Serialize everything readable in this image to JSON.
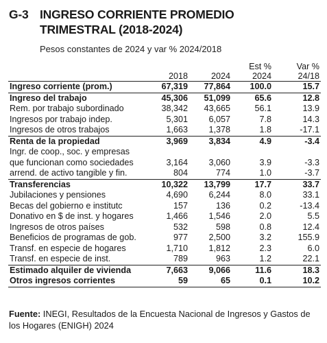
{
  "header": {
    "figure_code": "G-3",
    "title": "INGRESO CORRIENTE PROMEDIO\nTRIMESTRAL (2018-2024)",
    "subtitle": "Pesos constantes de 2024 y var % 2024/2018"
  },
  "columns": {
    "c2018": "2018",
    "c2024": "2024",
    "est_line1": "Est %",
    "est_line2": "2024",
    "var_line1": "Var %",
    "var_line2": "24/18"
  },
  "rows": [
    {
      "label": "Ingreso corriente (prom.)",
      "v2018": "67,319",
      "v2024": "77,864",
      "est": "100.0",
      "var": "15.7",
      "bold": true
    },
    {
      "label": "Ingreso del trabajo",
      "v2018": "45,306",
      "v2024": "51,099",
      "est": "65.6",
      "var": "12.8",
      "bold": true
    },
    {
      "label": "Rem. por trabajo subordinado",
      "v2018": "38,342",
      "v2024": "43,665",
      "est": "56.1",
      "var": "13.9"
    },
    {
      "label": "Ingresos por trabajo indep.",
      "v2018": "5,301",
      "v2024": "6,057",
      "est": "7.8",
      "var": "14.3"
    },
    {
      "label": "Ingresos de otros trabajos",
      "v2018": "1,663",
      "v2024": "1,378",
      "est": "1.8",
      "var": "-17.1"
    },
    {
      "label": "Renta de la propiedad",
      "v2018": "3,969",
      "v2024": "3,834",
      "est": "4.9",
      "var": "-3.4",
      "bold": true
    },
    {
      "label": "Ingr. de coop., soc. y empresas",
      "v2018": "",
      "v2024": "",
      "est": "",
      "var": ""
    },
    {
      "label": "que funcionan como sociedades",
      "v2018": "3,164",
      "v2024": "3,060",
      "est": "3.9",
      "var": "-3.3"
    },
    {
      "label": "arrend. de activo tangible y fin.",
      "v2018": "804",
      "v2024": "774",
      "est": "1.0",
      "var": "-3.7"
    },
    {
      "label": "Transferencias",
      "v2018": "10,322",
      "v2024": "13,799",
      "est": "17.7",
      "var": "33.7",
      "bold": true
    },
    {
      "label": "Jubilaciones y pensiones",
      "v2018": "4,690",
      "v2024": "6,244",
      "est": "8.0",
      "var": "33.1"
    },
    {
      "label": "Becas del gobierno e institutc",
      "v2018": "157",
      "v2024": "136",
      "est": "0.2",
      "var": "-13.4"
    },
    {
      "label": "Donativo en $ de inst. y hogares",
      "v2018": "1,466",
      "v2024": "1,546",
      "est": "2.0",
      "var": "5.5"
    },
    {
      "label": "Ingresos de otros países",
      "v2018": "532",
      "v2024": "598",
      "est": "0.8",
      "var": "12.4"
    },
    {
      "label": "Beneficios de programas de gob.",
      "v2018": "977",
      "v2024": "2,500",
      "est": "3.2",
      "var": "155.9"
    },
    {
      "label": "Transf. en especie de hogares",
      "v2018": "1,710",
      "v2024": "1,812",
      "est": "2.3",
      "var": "6.0"
    },
    {
      "label": "Transf. en especie de inst.",
      "v2018": "789",
      "v2024": "963",
      "est": "1.2",
      "var": "22.1"
    },
    {
      "label": "Estimado alquiler de vivienda",
      "v2018": "7,663",
      "v2024": "9,066",
      "est": "11.6",
      "var": "18.3",
      "bold": true
    },
    {
      "label": "Otros ingresos corrientes",
      "v2018": "59",
      "v2024": "65",
      "est": "0.1",
      "var": "10.2",
      "bold": true
    }
  ],
  "footer": {
    "source_label": "Fuente:",
    "source_text": " INEGI, Resultados de la Encuesta Nacional de Ingresos y Gastos de los Hogares (ENIGH) 2024"
  }
}
